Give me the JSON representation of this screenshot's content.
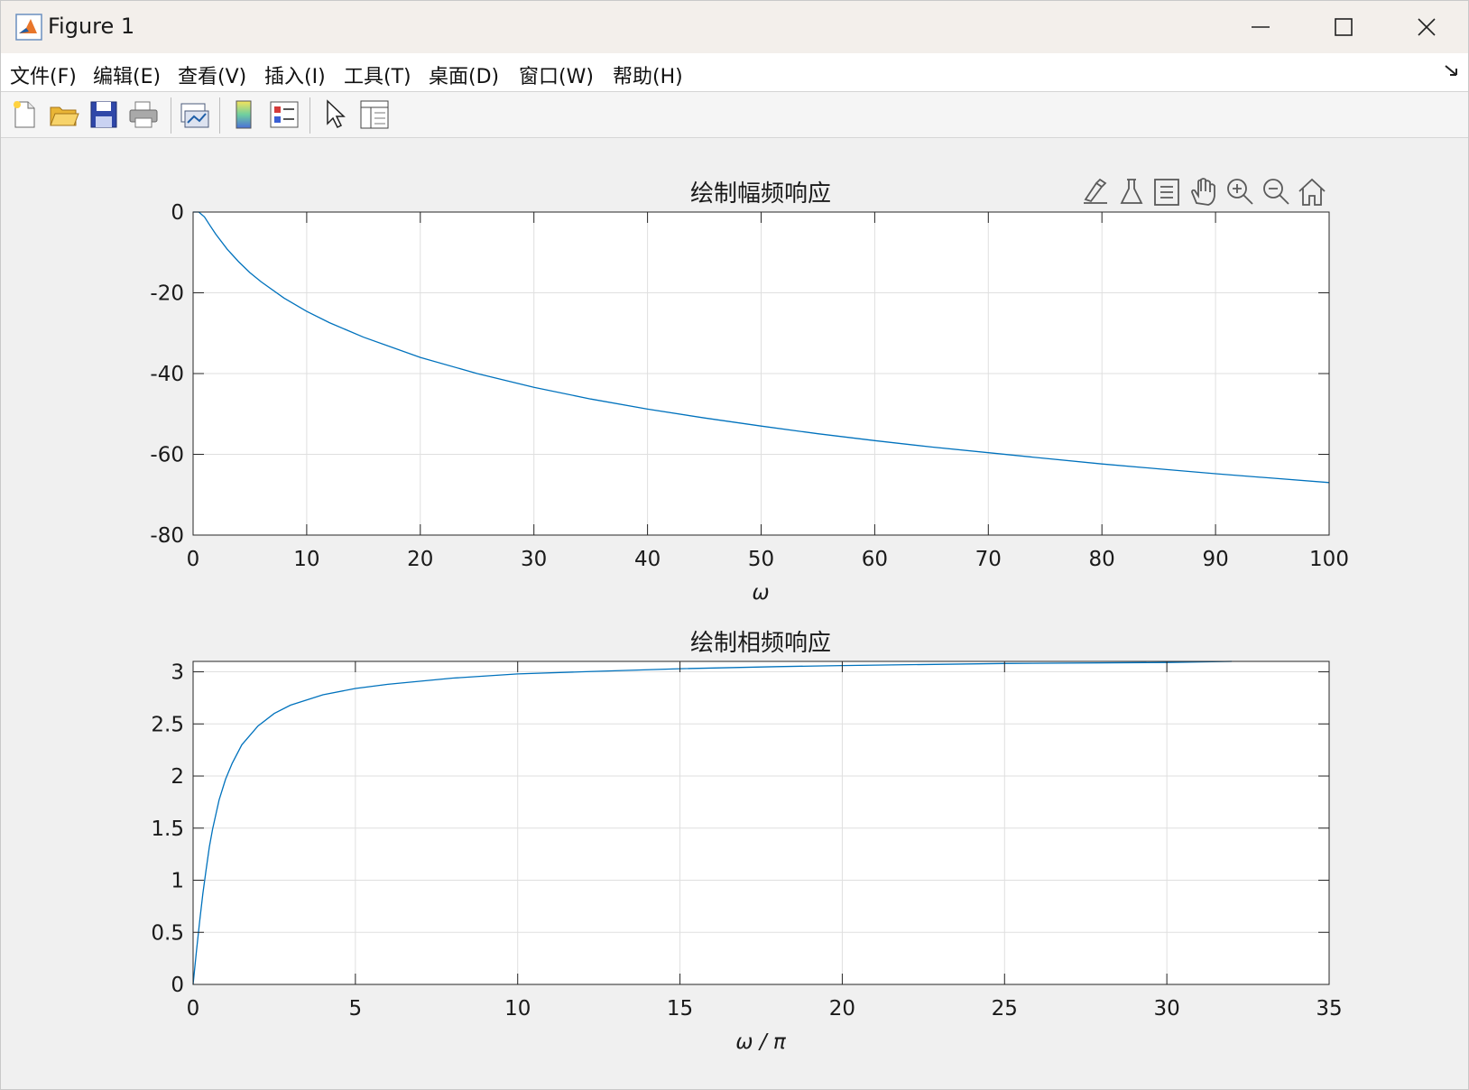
{
  "window": {
    "title": "Figure 1"
  },
  "menu": [
    {
      "label": "文件(F)"
    },
    {
      "label": "编辑(E)"
    },
    {
      "label": "查看(V)"
    },
    {
      "label": "插入(I)"
    },
    {
      "label": "工具(T)"
    },
    {
      "label": "桌面(D)"
    },
    {
      "label": "窗口(W)"
    },
    {
      "label": "帮助(H)"
    }
  ],
  "toolbar": [
    "new-figure-icon",
    "open-file-icon",
    "save-icon",
    "print-icon",
    "link-plot-icon",
    "colorbar-icon",
    "legend-icon",
    "pointer-icon",
    "property-inspector-icon"
  ],
  "axes_toolbar": [
    "brush-icon",
    "data-tips-icon",
    "rotate-icon",
    "pan-icon",
    "zoom-in-icon",
    "zoom-out-icon",
    "home-icon"
  ],
  "colors": {
    "line": "#0072BD",
    "grid": "#dfdfdf",
    "axis": "#262626"
  },
  "chart_data": [
    {
      "type": "line",
      "title": "绘制幅频响应",
      "xlabel": "ω",
      "ylabel": "",
      "xlim": [
        0,
        100
      ],
      "ylim": [
        -80,
        0
      ],
      "xticks": [
        0,
        10,
        20,
        30,
        40,
        50,
        60,
        70,
        80,
        90,
        100
      ],
      "yticks": [
        0,
        -20,
        -40,
        -60,
        -80
      ],
      "grid": true,
      "series": [
        {
          "x": [
            0,
            0.5,
            1,
            1.5,
            2,
            3,
            4,
            5,
            6,
            8,
            10,
            12,
            15,
            20,
            25,
            30,
            35,
            40,
            45,
            50,
            55,
            60,
            65,
            70,
            75,
            80,
            85,
            90,
            95,
            100
          ],
          "values": [
            2,
            0.8,
            -1.2,
            -3.4,
            -5.5,
            -9.2,
            -12.3,
            -15.0,
            -17.3,
            -21.3,
            -24.6,
            -27.4,
            -31.0,
            -36.0,
            -40.0,
            -43.4,
            -46.3,
            -48.8,
            -51.0,
            -53.0,
            -54.9,
            -56.6,
            -58.2,
            -59.6,
            -61.0,
            -62.4,
            -63.6,
            -64.8,
            -65.9,
            -67.0
          ]
        }
      ]
    },
    {
      "type": "line",
      "title": "绘制相频响应",
      "xlabel": "ω / π",
      "ylabel": "",
      "xlim": [
        0,
        35
      ],
      "ylim": [
        0,
        3.1
      ],
      "xticks": [
        0,
        5,
        10,
        15,
        20,
        25,
        30,
        35
      ],
      "yticks": [
        0,
        0.5,
        1,
        1.5,
        2,
        2.5,
        3
      ],
      "grid": true,
      "series": [
        {
          "x": [
            0,
            0.1,
            0.2,
            0.3,
            0.4,
            0.5,
            0.6,
            0.8,
            1,
            1.2,
            1.5,
            2,
            2.5,
            3,
            4,
            5,
            6,
            8,
            10,
            12,
            15,
            18,
            20,
            25,
            30,
            32
          ],
          "values": [
            0,
            0.31,
            0.6,
            0.87,
            1.1,
            1.32,
            1.49,
            1.77,
            1.97,
            2.12,
            2.3,
            2.48,
            2.6,
            2.68,
            2.78,
            2.84,
            2.88,
            2.94,
            2.98,
            3.0,
            3.03,
            3.05,
            3.06,
            3.08,
            3.09,
            3.1
          ]
        }
      ]
    }
  ]
}
